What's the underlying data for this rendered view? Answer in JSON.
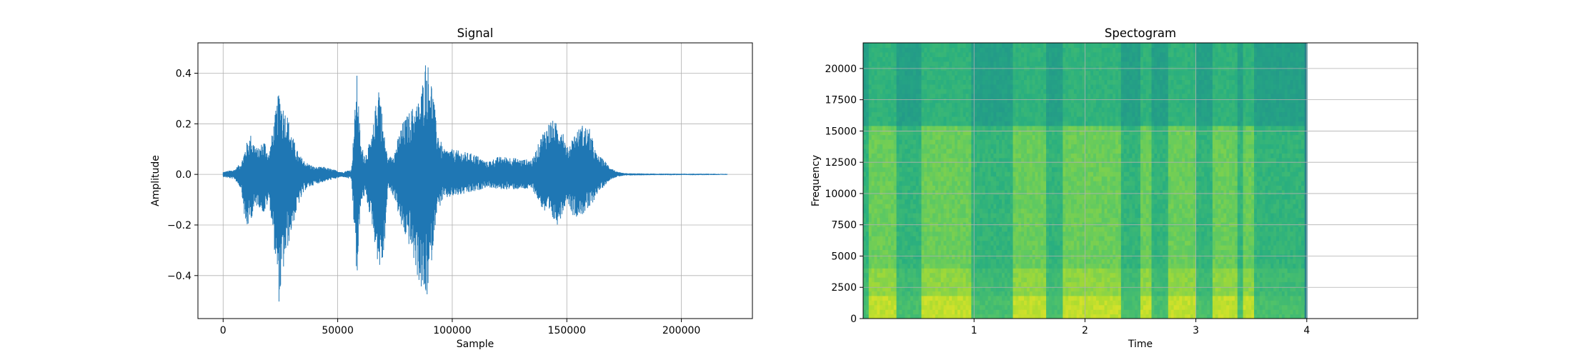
{
  "figure": {
    "background": "#ffffff"
  },
  "chart_data": [
    {
      "type": "line",
      "title": "Signal",
      "xlabel": "Sample",
      "ylabel": "Amplitude",
      "xlim": [
        -11000,
        231000
      ],
      "ylim": [
        -0.57,
        0.52
      ],
      "grid": true,
      "line_color": "#1f77b4",
      "x_ticks": [
        0,
        50000,
        100000,
        150000,
        200000
      ],
      "x_tick_labels": [
        "0",
        "50000",
        "100000",
        "150000",
        "200000"
      ],
      "y_ticks": [
        -0.4,
        -0.2,
        0.0,
        0.2,
        0.4
      ],
      "y_tick_labels": [
        "−0.4",
        "−0.2",
        "0.0",
        "0.2",
        "0.4"
      ],
      "series": [
        {
          "x": [
            0,
            5000,
            8000,
            10000,
            12000,
            15000,
            18000,
            20000,
            22000,
            24500,
            26000,
            28000,
            30000,
            33000,
            36000,
            40000,
            44000,
            48000,
            52000,
            56000,
            58500,
            60000,
            62000,
            65000,
            68000,
            70000,
            72000,
            75000,
            78000,
            82000,
            86000,
            88500,
            90000,
            91500,
            93000,
            96000,
            100000,
            105000,
            110000,
            115000,
            120000,
            125000,
            130000,
            135000,
            140000,
            143000,
            146000,
            148000,
            150000,
            153000,
            157000,
            160000,
            163000,
            166000,
            169000,
            172000,
            175000,
            180000,
            190000,
            200000,
            210000,
            220000
          ],
          "y_max": [
            0.01,
            0.02,
            0.05,
            0.12,
            0.16,
            0.1,
            0.14,
            0.08,
            0.2,
            0.34,
            0.28,
            0.24,
            0.16,
            0.08,
            0.05,
            0.03,
            0.03,
            0.02,
            0.01,
            0.02,
            0.41,
            0.12,
            0.08,
            0.15,
            0.39,
            0.18,
            0.06,
            0.1,
            0.2,
            0.26,
            0.3,
            0.47,
            0.42,
            0.35,
            0.2,
            0.1,
            0.1,
            0.09,
            0.08,
            0.05,
            0.07,
            0.07,
            0.06,
            0.06,
            0.18,
            0.22,
            0.2,
            0.2,
            0.1,
            0.16,
            0.2,
            0.18,
            0.08,
            0.06,
            0.03,
            0.01,
            0.005,
            0.004,
            0.003,
            0.003,
            0.003,
            0.002
          ],
          "y_min": [
            -0.01,
            -0.02,
            -0.06,
            -0.23,
            -0.18,
            -0.12,
            -0.16,
            -0.1,
            -0.26,
            -0.52,
            -0.4,
            -0.3,
            -0.22,
            -0.12,
            -0.06,
            -0.04,
            -0.03,
            -0.02,
            -0.01,
            -0.02,
            -0.45,
            -0.12,
            -0.08,
            -0.2,
            -0.38,
            -0.35,
            -0.05,
            -0.1,
            -0.22,
            -0.3,
            -0.45,
            -0.52,
            -0.43,
            -0.3,
            -0.16,
            -0.1,
            -0.09,
            -0.08,
            -0.07,
            -0.05,
            -0.06,
            -0.06,
            -0.06,
            -0.06,
            -0.15,
            -0.18,
            -0.2,
            -0.16,
            -0.1,
            -0.17,
            -0.16,
            -0.14,
            -0.08,
            -0.05,
            -0.02,
            -0.01,
            -0.005,
            -0.004,
            -0.003,
            -0.003,
            -0.003,
            -0.002
          ]
        }
      ]
    },
    {
      "type": "heatmap",
      "title": "Spectogram",
      "xlabel": "Time",
      "ylabel": "Frequency",
      "xlim": [
        0,
        5.0
      ],
      "ylim": [
        0,
        22050
      ],
      "grid": true,
      "colormap": "viridis",
      "x_ticks": [
        1,
        2,
        3,
        4
      ],
      "x_tick_labels": [
        "1",
        "2",
        "3",
        "4"
      ],
      "y_ticks": [
        0,
        2500,
        5000,
        7500,
        10000,
        12500,
        15000,
        17500,
        20000
      ],
      "y_tick_labels": [
        "0",
        "2500",
        "5000",
        "7500",
        "10000",
        "12500",
        "15000",
        "17500",
        "20000"
      ],
      "data_extent": {
        "time_end": 4.0,
        "freq_end": 22050
      },
      "voiced_intervals": [
        [
          0.05,
          0.3
        ],
        [
          0.52,
          0.98
        ],
        [
          1.35,
          1.66
        ],
        [
          1.8,
          2.33
        ],
        [
          2.5,
          2.6
        ],
        [
          2.75,
          3.0
        ],
        [
          3.15,
          3.38
        ],
        [
          3.42,
          3.52
        ]
      ],
      "bright_band_top": 15400
    }
  ]
}
